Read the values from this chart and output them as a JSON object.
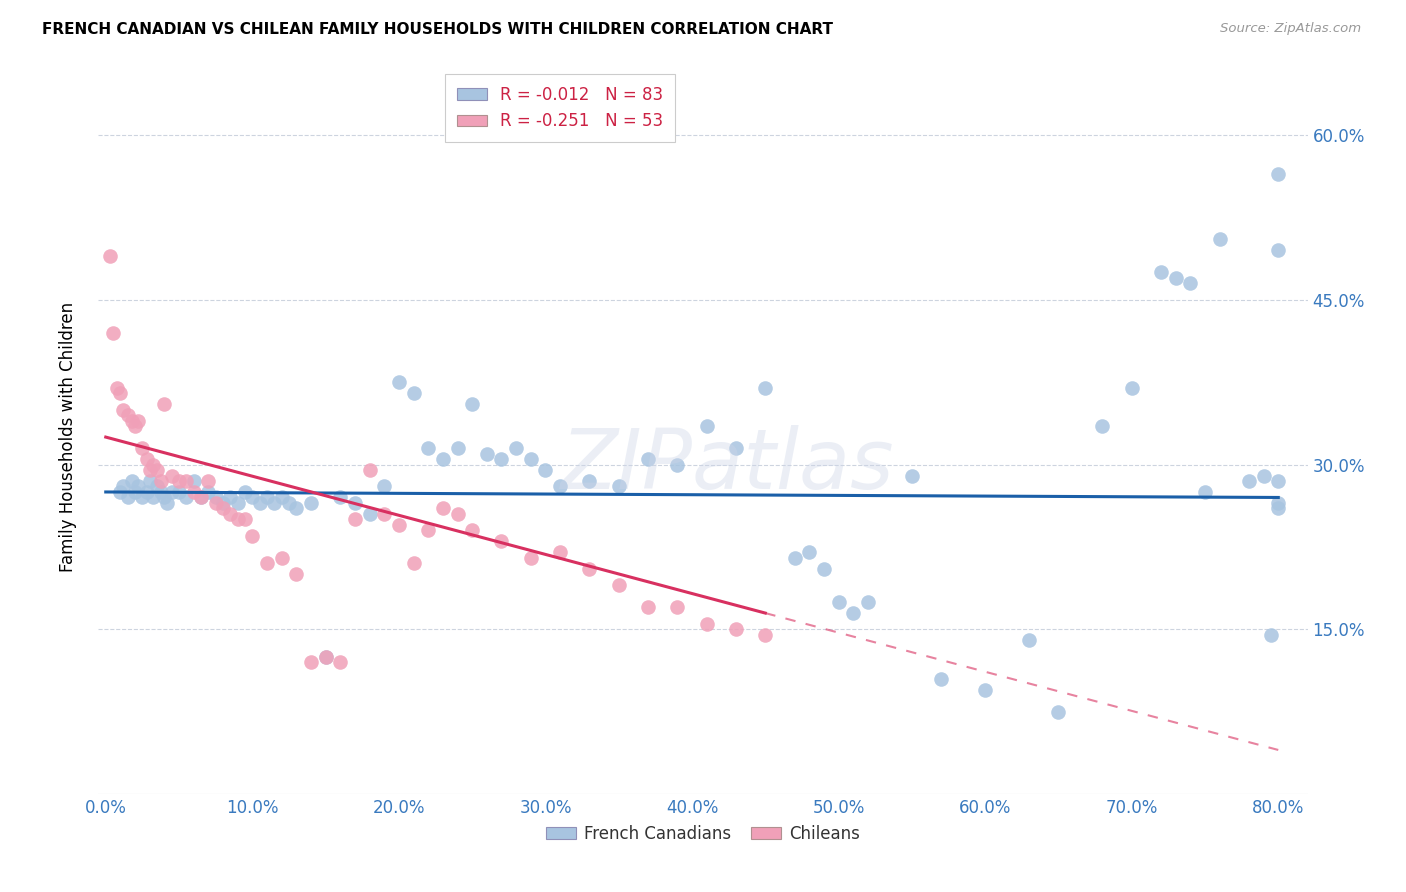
{
  "title": "FRENCH CANADIAN VS CHILEAN FAMILY HOUSEHOLDS WITH CHILDREN CORRELATION CHART",
  "source": "Source: ZipAtlas.com",
  "ylabel_label": "Family Households with Children",
  "watermark": "ZIPatlas",
  "blue_color": "#a8c4e0",
  "pink_color": "#f0a0b8",
  "blue_line_color": "#1a5fa8",
  "pink_line_color": "#d83060",
  "legend_blue_R": "-0.012",
  "legend_blue_N": "83",
  "legend_pink_R": "-0.251",
  "legend_pink_N": "53",
  "x_min": 0,
  "x_max": 80,
  "y_min": 0,
  "y_max": 65,
  "x_ticks": [
    0,
    10,
    20,
    30,
    40,
    50,
    60,
    70,
    80
  ],
  "x_tick_labels": [
    "0.0%",
    "10.0%",
    "20.0%",
    "30.0%",
    "40.0%",
    "50.0%",
    "60.0%",
    "70.0%",
    "80.0%"
  ],
  "y_ticks": [
    15,
    30,
    45,
    60
  ],
  "y_tick_labels": [
    "15.0%",
    "30.0%",
    "45.0%",
    "60.0%"
  ],
  "blue_x": [
    1.0,
    1.2,
    1.5,
    1.8,
    2.0,
    2.2,
    2.5,
    2.8,
    3.0,
    3.2,
    3.5,
    3.8,
    4.0,
    4.2,
    4.5,
    5.0,
    5.5,
    6.0,
    6.5,
    7.0,
    7.5,
    8.0,
    8.5,
    9.0,
    9.5,
    10.0,
    10.5,
    11.0,
    11.5,
    12.0,
    12.5,
    13.0,
    14.0,
    15.0,
    16.0,
    17.0,
    18.0,
    19.0,
    20.0,
    21.0,
    22.0,
    23.0,
    24.0,
    25.0,
    26.0,
    27.0,
    28.0,
    29.0,
    30.0,
    31.0,
    33.0,
    35.0,
    37.0,
    39.0,
    41.0,
    43.0,
    45.0,
    47.0,
    48.0,
    49.0,
    50.0,
    51.0,
    52.0,
    55.0,
    57.0,
    60.0,
    63.0,
    65.0,
    68.0,
    70.0,
    72.0,
    73.0,
    74.0,
    75.0,
    76.0,
    78.0,
    79.0,
    79.5,
    80.0,
    80.0,
    80.0,
    80.0,
    80.0
  ],
  "blue_y": [
    27.5,
    28.0,
    27.0,
    28.5,
    27.5,
    28.0,
    27.0,
    27.5,
    28.5,
    27.0,
    28.0,
    27.5,
    27.0,
    26.5,
    27.5,
    27.5,
    27.0,
    28.5,
    27.0,
    27.5,
    27.0,
    26.5,
    27.0,
    26.5,
    27.5,
    27.0,
    26.5,
    27.0,
    26.5,
    27.0,
    26.5,
    26.0,
    26.5,
    12.5,
    27.0,
    26.5,
    25.5,
    28.0,
    37.5,
    36.5,
    31.5,
    30.5,
    31.5,
    35.5,
    31.0,
    30.5,
    31.5,
    30.5,
    29.5,
    28.0,
    28.5,
    28.0,
    30.5,
    30.0,
    33.5,
    31.5,
    37.0,
    21.5,
    22.0,
    20.5,
    17.5,
    16.5,
    17.5,
    29.0,
    10.5,
    9.5,
    14.0,
    7.5,
    33.5,
    37.0,
    47.5,
    47.0,
    46.5,
    27.5,
    50.5,
    28.5,
    29.0,
    14.5,
    26.5,
    56.5,
    49.5,
    26.0,
    28.5
  ],
  "pink_x": [
    0.3,
    0.5,
    0.8,
    1.0,
    1.2,
    1.5,
    1.8,
    2.0,
    2.2,
    2.5,
    2.8,
    3.0,
    3.2,
    3.5,
    3.8,
    4.0,
    4.5,
    5.0,
    5.5,
    6.0,
    6.5,
    7.0,
    7.5,
    8.0,
    8.5,
    9.0,
    9.5,
    10.0,
    11.0,
    12.0,
    13.0,
    14.0,
    15.0,
    16.0,
    17.0,
    18.0,
    19.0,
    20.0,
    21.0,
    22.0,
    23.0,
    24.0,
    25.0,
    27.0,
    29.0,
    31.0,
    33.0,
    35.0,
    37.0,
    39.0,
    41.0,
    43.0,
    45.0
  ],
  "pink_y": [
    49.0,
    42.0,
    37.0,
    36.5,
    35.0,
    34.5,
    34.0,
    33.5,
    34.0,
    31.5,
    30.5,
    29.5,
    30.0,
    29.5,
    28.5,
    35.5,
    29.0,
    28.5,
    28.5,
    27.5,
    27.0,
    28.5,
    26.5,
    26.0,
    25.5,
    25.0,
    25.0,
    23.5,
    21.0,
    21.5,
    20.0,
    12.0,
    12.5,
    12.0,
    25.0,
    29.5,
    25.5,
    24.5,
    21.0,
    24.0,
    26.0,
    25.5,
    24.0,
    23.0,
    21.5,
    22.0,
    20.5,
    19.0,
    17.0,
    17.0,
    15.5,
    15.0,
    14.5
  ],
  "blue_trend_x0": 0,
  "blue_trend_x1": 80,
  "blue_trend_y0": 27.5,
  "blue_trend_y1": 27.0,
  "pink_trend_x0": 0,
  "pink_trend_x1": 80,
  "pink_trend_y0": 32.5,
  "pink_trend_y1": 4.0,
  "pink_solid_end": 45
}
